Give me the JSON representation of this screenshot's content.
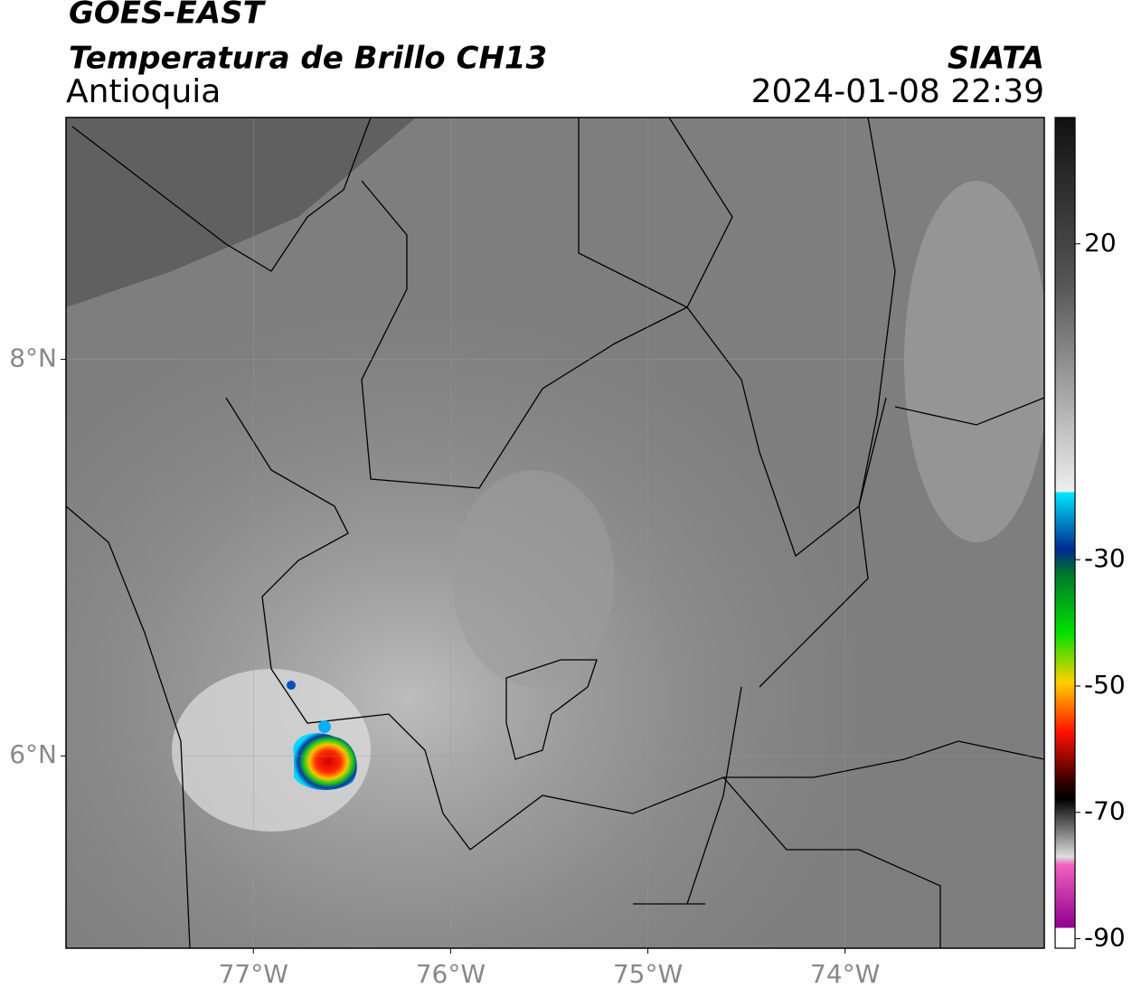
{
  "header": {
    "title": "GOES-EAST",
    "subtitle": "Temperatura de Brillo CH13",
    "region": "Antioquia",
    "source": "SIATA",
    "datetime": "2024-01-08 22:39"
  },
  "map": {
    "xlim": [
      -77.95,
      -72.99
    ],
    "ylim": [
      5.03,
      9.22
    ],
    "xticks": [
      {
        "value": -77,
        "label": "77°W"
      },
      {
        "value": -76,
        "label": "76°W"
      },
      {
        "value": -75,
        "label": "75°W"
      },
      {
        "value": -74,
        "label": "74°W"
      }
    ],
    "yticks": [
      {
        "value": 6,
        "label": "6°N"
      },
      {
        "value": 8,
        "label": "8°N"
      }
    ],
    "grid": true
  },
  "colorbar": {
    "lim": [
      -91.5,
      40
    ],
    "ticks": [
      20,
      -30,
      -50,
      -70,
      -90
    ]
  }
}
